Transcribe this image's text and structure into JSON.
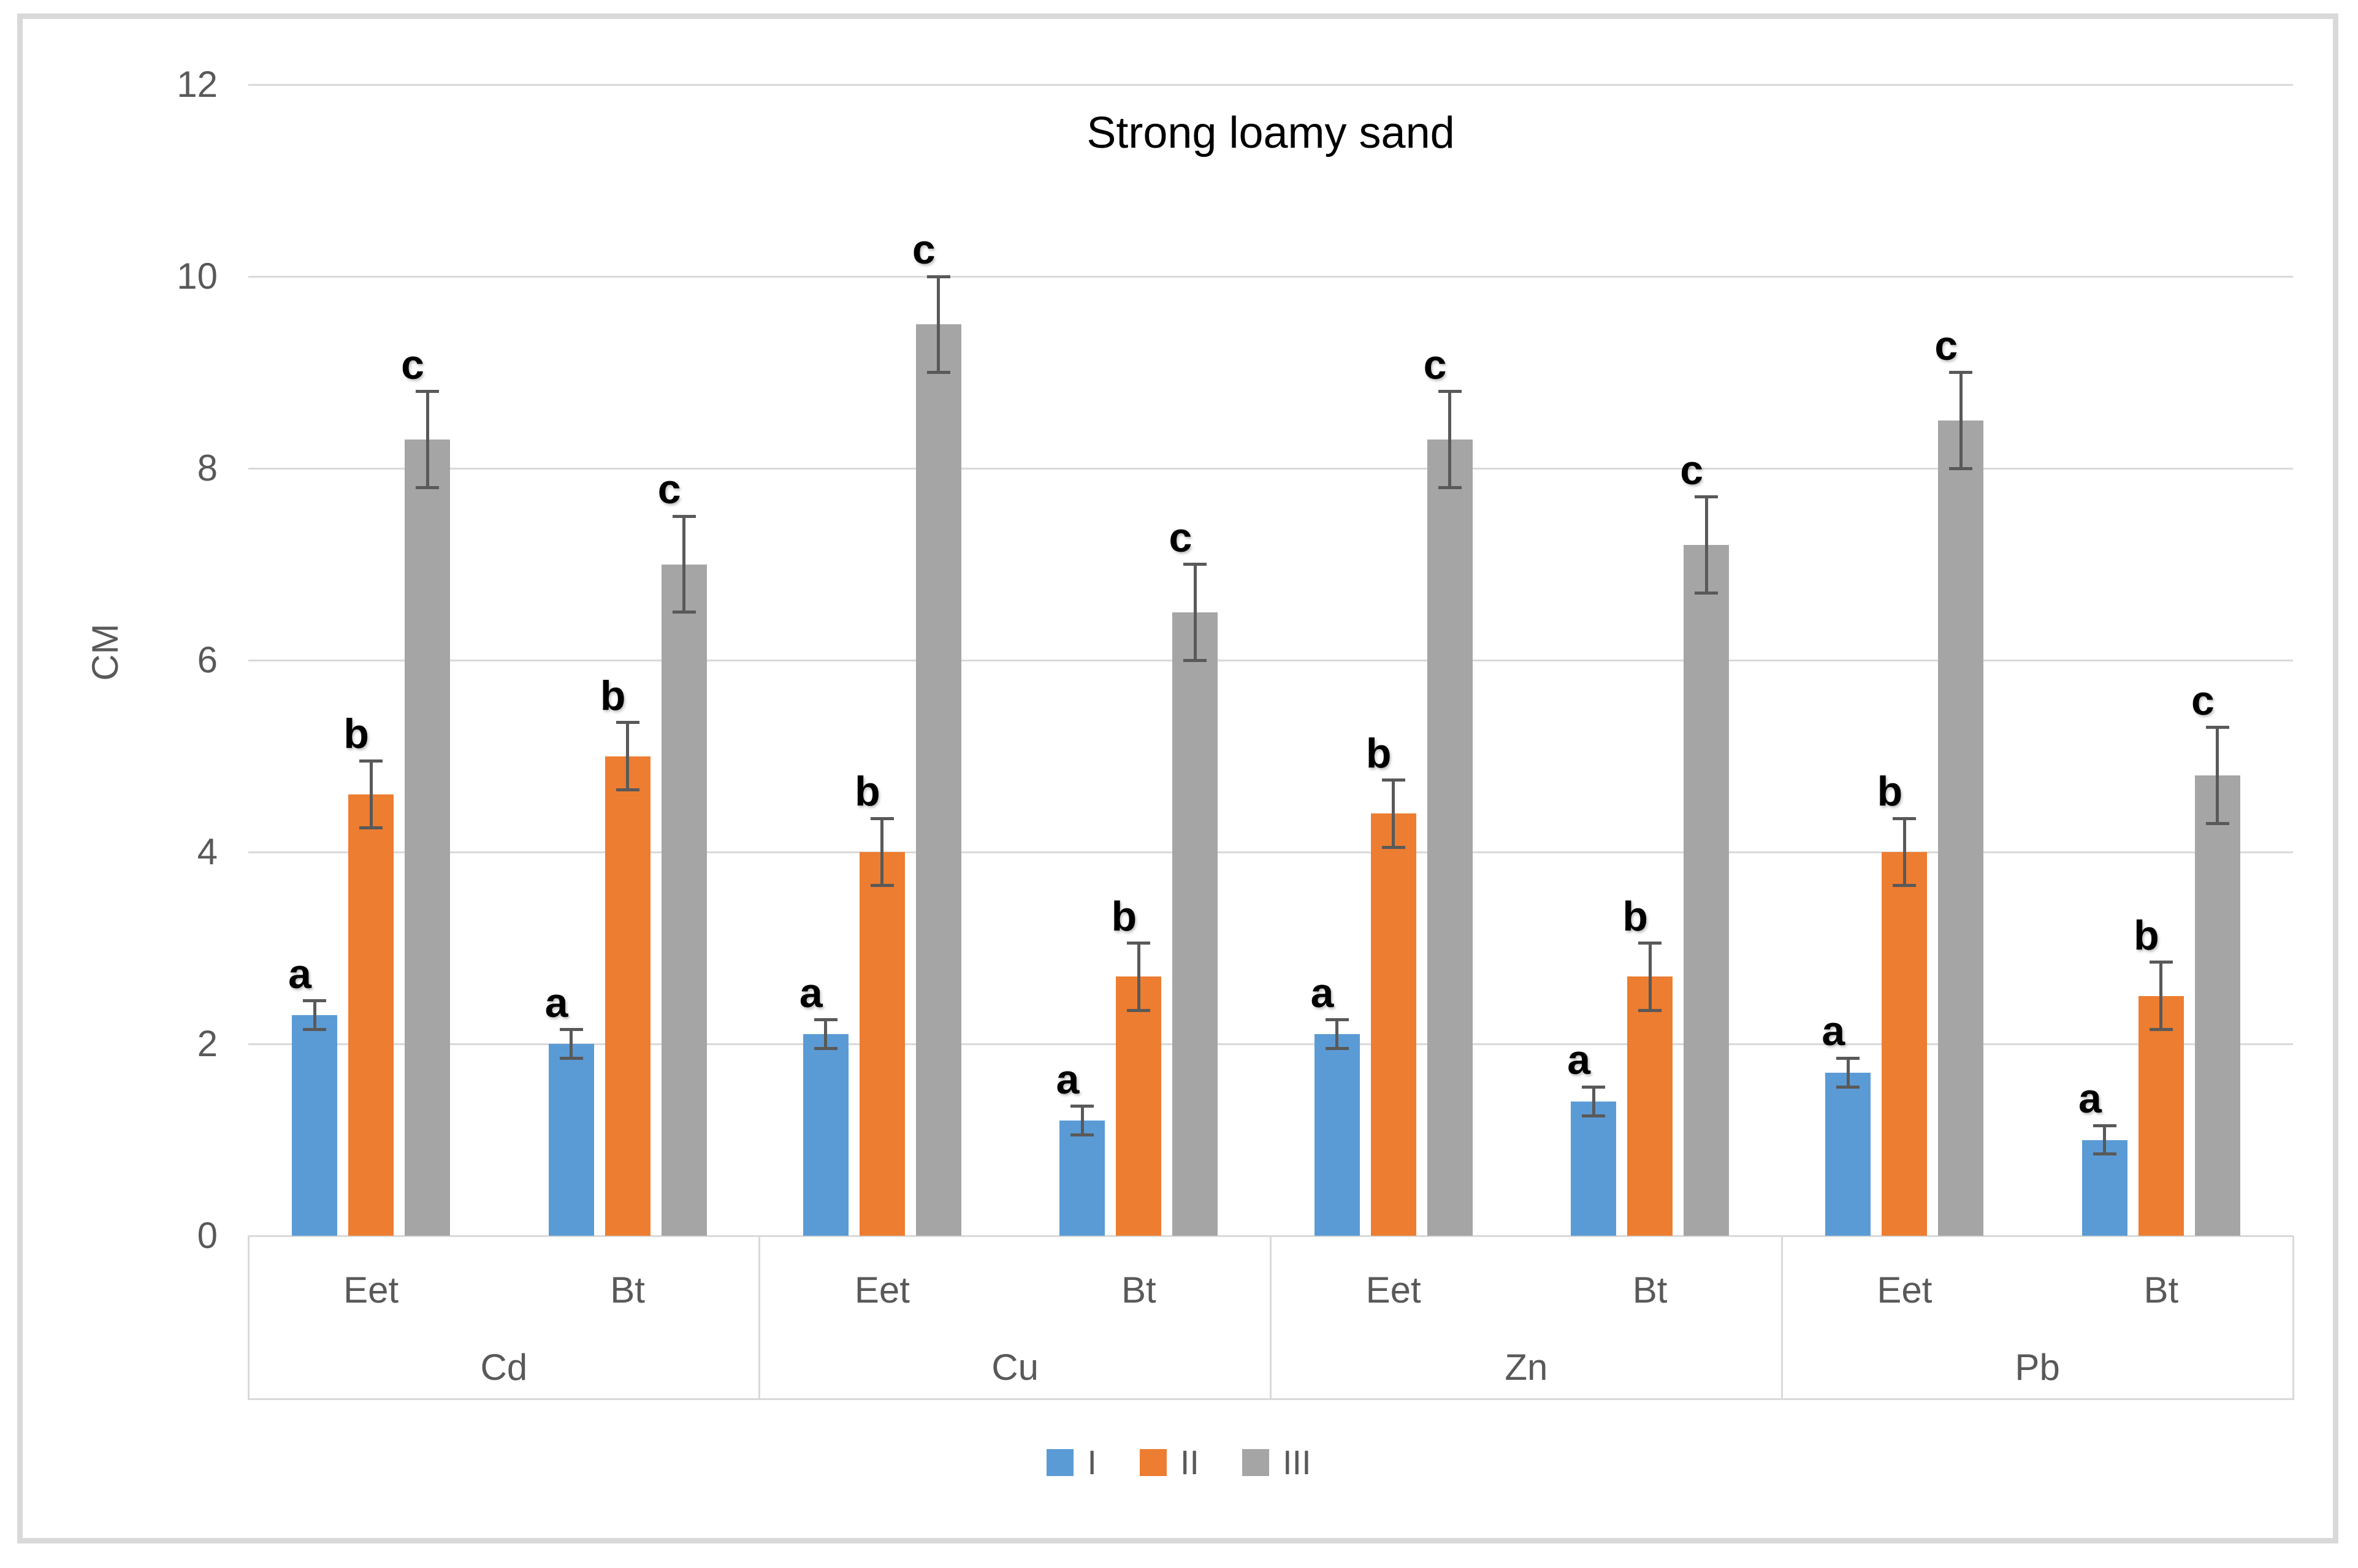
{
  "figure": {
    "title": "Strong loamy sand",
    "ylabel": "CM"
  },
  "chart_data": {
    "type": "bar",
    "title": "Strong loamy sand",
    "xlabel": "",
    "ylabel": "CM",
    "ylim": [
      0,
      12
    ],
    "yticks": [
      0,
      2,
      4,
      6,
      8,
      10,
      12
    ],
    "grid": "horizontal",
    "legend_position": "bottom",
    "group_categories": [
      "Cd",
      "Cu",
      "Zn",
      "Pb"
    ],
    "sub_categories": [
      "Eet",
      "Bt"
    ],
    "column_order": [
      "Cd-Eet",
      "Cd-Bt",
      "Cu-Eet",
      "Cu-Bt",
      "Zn-Eet",
      "Zn-Bt",
      "Pb-Eet",
      "Pb-Bt"
    ],
    "series": [
      {
        "name": "I",
        "color": "#5B9BD5",
        "sig_letter": "a",
        "values": [
          2.3,
          2.0,
          2.1,
          1.2,
          2.1,
          1.4,
          1.7,
          1.0
        ],
        "errors": [
          0.15,
          0.15,
          0.15,
          0.15,
          0.15,
          0.15,
          0.15,
          0.15
        ]
      },
      {
        "name": "II",
        "color": "#ED7D31",
        "sig_letter": "b",
        "values": [
          4.6,
          5.0,
          4.0,
          2.7,
          4.4,
          2.7,
          4.0,
          2.5
        ],
        "errors": [
          0.35,
          0.35,
          0.35,
          0.35,
          0.35,
          0.35,
          0.35,
          0.35
        ]
      },
      {
        "name": "III",
        "color": "#A5A5A5",
        "sig_letter": "c",
        "values": [
          8.3,
          7.0,
          9.5,
          6.5,
          8.3,
          7.2,
          8.5,
          4.8
        ],
        "errors": [
          0.5,
          0.5,
          0.5,
          0.5,
          0.5,
          0.5,
          0.5,
          0.5
        ]
      }
    ],
    "colors": {
      "series_I": "#5B9BD5",
      "series_II": "#ED7D31",
      "series_III": "#A5A5A5",
      "error_bar": "#595959",
      "axis_text": "#595959",
      "gridline": "#D9D9D9",
      "annotation": "#000000",
      "figure_border": "#D9D9D9"
    }
  }
}
